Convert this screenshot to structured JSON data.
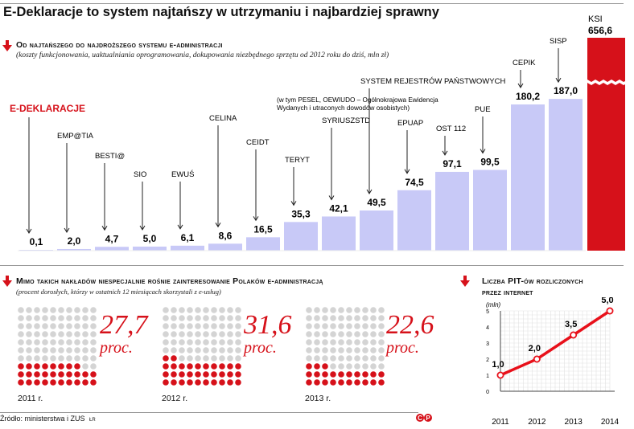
{
  "title": "E-Deklaracje to system najtańszy w utrzymaniu i najbardziej sprawny",
  "colors": {
    "accent": "#d6111a",
    "bar": "#c8c9f7",
    "dot_grey": "#d4d4d4",
    "dot_red": "#d6111a",
    "line": "#e8101a"
  },
  "icons": [
    "down-arrow-icon",
    "copyright-icon"
  ],
  "section1": {
    "title": "Od najtańszego do najdroższego systemu e-administracji",
    "subtitle": "(koszty funkcjonowania, uaktualniania oprogramowania, dokupowania niezbędnego sprzętu od 2012 roku do dziś, mln zł)"
  },
  "section2": {
    "title": "Mimo takich nakładów niespecjalnie rośnie zainteresowanie Polaków e-administracją",
    "subtitle": "(procent dorosłych, którzy w ostatnich 12 miesiącach skorzystali z e-usług)",
    "unit": "proc."
  },
  "section3": {
    "title_line1": "Liczba PIT-ów rozliczonych",
    "title_line2": "przez internet"
  },
  "chart_data": [
    {
      "type": "bar",
      "categories": [
        "E-DEKLARACJE",
        "EMP@TIA",
        "BESTI@",
        "SIO",
        "EWUŚ",
        "CELINA",
        "CEIDT",
        "TERYT",
        "SYRIUSZSTD",
        "SYSTEM REJESTRÓW PAŃSTWOWYCH",
        "EPUAP",
        "OST 112",
        "PUE",
        "CEPIK",
        "SISP",
        "KSI"
      ],
      "values": [
        0.1,
        2.0,
        4.7,
        5.0,
        6.1,
        8.6,
        16.5,
        35.3,
        42.1,
        49.5,
        74.5,
        97.1,
        99.5,
        180.2,
        187.0,
        656.6
      ],
      "value_labels": [
        "0,1",
        "2,0",
        "4,7",
        "5,0",
        "6,1",
        "8,6",
        "16,5",
        "35,3",
        "42,1",
        "49,5",
        "74,5",
        "97,1",
        "99,5",
        "180,2",
        "187,0",
        "656,6"
      ],
      "annotation": "(w tym PESEL, OEWIUDO – Ogólnokrajowa Ewidencja Wydanych i utraconych dowodów osobistych)",
      "axis_break": true
    },
    {
      "type": "pictogram",
      "categories": [
        "2011 r.",
        "2012 r.",
        "2013 r."
      ],
      "values": [
        27.7,
        31.6,
        22.6
      ],
      "value_labels": [
        "27,7",
        "31,6",
        "22,6"
      ]
    },
    {
      "type": "line",
      "x": [
        "2011",
        "2012",
        "2013",
        "2014"
      ],
      "values": [
        1.0,
        2.0,
        3.5,
        5.0
      ],
      "value_labels": [
        "1,0",
        "2,0",
        "3,5",
        "5,0"
      ],
      "ylabel": "(mln)",
      "ylim": [
        0,
        5
      ],
      "yticks": [
        "0",
        "1",
        "2",
        "3",
        "4",
        "5"
      ],
      "grid": true
    }
  ],
  "footer": {
    "source": "Źródło: ministerstwa i ZUS",
    "initials": "ŁR"
  }
}
